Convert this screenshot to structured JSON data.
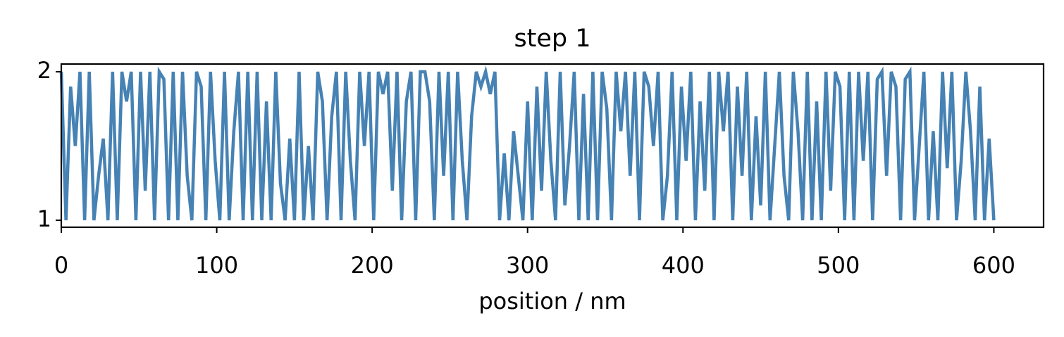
{
  "chart_data": {
    "type": "line",
    "title": "step 1",
    "xlabel": "position / nm",
    "color": "#4682b4",
    "x": [
      0,
      3,
      6,
      9,
      12,
      15,
      18,
      21,
      24,
      27,
      30,
      33,
      36,
      39,
      42,
      45,
      48,
      51,
      54,
      57,
      60,
      63,
      66,
      69,
      72,
      75,
      78,
      81,
      84,
      87,
      90,
      93,
      96,
      99,
      102,
      105,
      108,
      111,
      114,
      117,
      120,
      123,
      126,
      129,
      132,
      135,
      138,
      141,
      144,
      147,
      150,
      153,
      156,
      159,
      162,
      165,
      168,
      171,
      174,
      177,
      180,
      183,
      186,
      189,
      192,
      195,
      198,
      201,
      204,
      207,
      210,
      213,
      216,
      219,
      222,
      225,
      228,
      231,
      234,
      237,
      240,
      243,
      246,
      249,
      252,
      255,
      258,
      261,
      264,
      267,
      270,
      273,
      276,
      279,
      282,
      285,
      288,
      291,
      294,
      297,
      300,
      303,
      306,
      309,
      312,
      315,
      318,
      321,
      324,
      327,
      330,
      333,
      336,
      339,
      342,
      345,
      348,
      351,
      354,
      357,
      360,
      363,
      366,
      369,
      372,
      375,
      378,
      381,
      384,
      387,
      390,
      393,
      396,
      399,
      402,
      405,
      408,
      411,
      414,
      417,
      420,
      423,
      426,
      429,
      432,
      435,
      438,
      441,
      444,
      447,
      450,
      453,
      456,
      459,
      462,
      465,
      468,
      471,
      474,
      477,
      480,
      483,
      486,
      489,
      492,
      495,
      498,
      501,
      504,
      507,
      510,
      513,
      516,
      519,
      522,
      525,
      528,
      531,
      534,
      537,
      540,
      543,
      546,
      549,
      552,
      555,
      558,
      561,
      564,
      567,
      570,
      573,
      576,
      579,
      582,
      585,
      588,
      591,
      594,
      597,
      600
    ],
    "values": [
      2,
      1,
      1.9,
      1.5,
      2,
      1,
      2,
      1,
      1.3,
      1.55,
      1,
      2,
      1,
      2,
      1.8,
      2,
      1,
      2,
      1.2,
      2,
      1,
      2,
      1.95,
      1,
      2,
      1,
      2,
      1.3,
      1,
      2,
      1.9,
      1,
      2,
      1.4,
      1,
      2,
      1,
      1.6,
      2,
      1,
      2,
      1,
      2,
      1,
      1.8,
      1,
      2,
      1.25,
      1,
      1.55,
      1,
      2,
      1,
      1.5,
      1,
      2,
      1.8,
      1,
      1.7,
      2,
      1,
      2,
      1.4,
      1,
      2,
      1.5,
      2,
      1,
      2,
      1.85,
      2,
      1.2,
      2,
      1,
      1.8,
      2,
      1,
      2,
      2,
      1.8,
      1,
      2,
      1.3,
      2,
      1,
      2,
      1.4,
      1,
      1.7,
      2,
      1.9,
      2,
      1.85,
      2,
      1,
      1.45,
      1,
      1.6,
      1.3,
      1,
      1.8,
      1,
      1.9,
      1.2,
      2,
      1.4,
      1,
      2,
      1.1,
      1.5,
      2,
      1,
      1.85,
      1,
      2,
      1,
      2,
      1.75,
      1,
      2,
      1.6,
      2,
      1.3,
      2,
      1,
      2,
      1.9,
      1.5,
      2,
      1,
      1.3,
      2,
      1,
      1.9,
      1.4,
      2,
      1,
      1.8,
      1.2,
      2,
      1,
      2,
      1.6,
      2,
      1,
      1.9,
      1.3,
      2,
      1,
      1.7,
      1.1,
      2,
      1,
      1.5,
      2,
      1.3,
      1,
      2,
      1.6,
      1,
      2,
      1,
      1.8,
      1,
      2,
      1.2,
      2,
      1.9,
      1,
      2,
      1,
      2,
      1.4,
      2,
      1,
      1.95,
      2,
      1.3,
      2,
      1.9,
      1,
      1.95,
      2,
      1,
      1.5,
      2,
      1,
      1.6,
      1,
      2,
      1.35,
      2,
      1,
      1.4,
      2,
      1.6,
      1,
      1.9,
      1,
      1.55,
      1
    ],
    "xlim": [
      0,
      632
    ],
    "ylim": [
      0.953,
      2.052
    ],
    "xticks": [
      0,
      100,
      200,
      300,
      400,
      500,
      600
    ],
    "yticks": [
      1,
      2
    ]
  }
}
